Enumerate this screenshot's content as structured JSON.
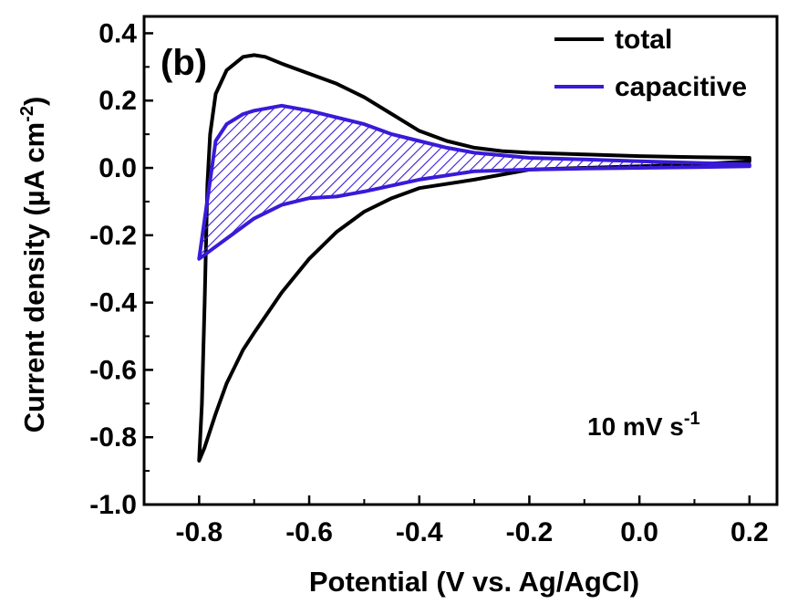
{
  "chart_data": {
    "type": "line",
    "panel_label": "(b)",
    "xlabel": "Potential (V vs. Ag/AgCl)",
    "ylabel": {
      "base": "Current density (µA cm",
      "sup": "-2",
      "close": ")"
    },
    "xlim": [
      -0.9,
      0.25
    ],
    "ylim": [
      -1.0,
      0.45
    ],
    "xticks": [
      -0.8,
      -0.6,
      -0.4,
      -0.2,
      0.0,
      0.2
    ],
    "xtick_labels": [
      "-0.8",
      "-0.6",
      "-0.4",
      "-0.2",
      "0.0",
      "0.2"
    ],
    "yticks": [
      -1.0,
      -0.8,
      -0.6,
      -0.4,
      -0.2,
      0.0,
      0.2,
      0.4
    ],
    "ytick_labels": [
      "-1.0",
      "-0.8",
      "-0.6",
      "-0.4",
      "-0.2",
      "0.0",
      "0.2",
      "0.4"
    ],
    "grid": false,
    "legend_position": "top-right",
    "annotation": {
      "base": "10 mV s",
      "sup": "-1"
    },
    "series": [
      {
        "name": "total",
        "color": "#000000",
        "points": [
          [
            -0.8,
            -0.87
          ],
          [
            -0.795,
            -0.7
          ],
          [
            -0.79,
            -0.4
          ],
          [
            -0.785,
            -0.05
          ],
          [
            -0.78,
            0.1
          ],
          [
            -0.77,
            0.22
          ],
          [
            -0.75,
            0.29
          ],
          [
            -0.72,
            0.33
          ],
          [
            -0.7,
            0.335
          ],
          [
            -0.68,
            0.33
          ],
          [
            -0.65,
            0.31
          ],
          [
            -0.6,
            0.28
          ],
          [
            -0.55,
            0.25
          ],
          [
            -0.5,
            0.21
          ],
          [
            -0.45,
            0.16
          ],
          [
            -0.4,
            0.11
          ],
          [
            -0.35,
            0.08
          ],
          [
            -0.3,
            0.06
          ],
          [
            -0.25,
            0.05
          ],
          [
            -0.2,
            0.045
          ],
          [
            -0.1,
            0.04
          ],
          [
            0.0,
            0.035
          ],
          [
            0.1,
            0.032
          ],
          [
            0.2,
            0.03
          ],
          [
            0.2,
            0.02
          ],
          [
            0.1,
            0.01
          ],
          [
            0.0,
            0.005
          ],
          [
            -0.1,
            0.0
          ],
          [
            -0.2,
            -0.005
          ],
          [
            -0.25,
            -0.02
          ],
          [
            -0.3,
            -0.035
          ],
          [
            -0.4,
            -0.06
          ],
          [
            -0.45,
            -0.09
          ],
          [
            -0.5,
            -0.13
          ],
          [
            -0.55,
            -0.19
          ],
          [
            -0.6,
            -0.27
          ],
          [
            -0.65,
            -0.37
          ],
          [
            -0.7,
            -0.49
          ],
          [
            -0.72,
            -0.54
          ],
          [
            -0.75,
            -0.64
          ],
          [
            -0.77,
            -0.73
          ],
          [
            -0.79,
            -0.83
          ],
          [
            -0.8,
            -0.87
          ]
        ]
      },
      {
        "name": "capacitive",
        "color": "#3a1ad8",
        "fill": "hatched",
        "points": [
          [
            -0.8,
            -0.27
          ],
          [
            -0.77,
            0.08
          ],
          [
            -0.75,
            0.13
          ],
          [
            -0.72,
            0.16
          ],
          [
            -0.7,
            0.17
          ],
          [
            -0.65,
            0.185
          ],
          [
            -0.6,
            0.17
          ],
          [
            -0.55,
            0.15
          ],
          [
            -0.5,
            0.13
          ],
          [
            -0.45,
            0.1
          ],
          [
            -0.4,
            0.08
          ],
          [
            -0.35,
            0.06
          ],
          [
            -0.3,
            0.045
          ],
          [
            -0.2,
            0.03
          ],
          [
            -0.1,
            0.025
          ],
          [
            0.0,
            0.02
          ],
          [
            0.1,
            0.015
          ],
          [
            0.2,
            0.01
          ],
          [
            0.2,
            0.005
          ],
          [
            0.1,
            0.002
          ],
          [
            0.0,
            0.0
          ],
          [
            -0.1,
            -0.002
          ],
          [
            -0.2,
            -0.005
          ],
          [
            -0.3,
            -0.01
          ],
          [
            -0.4,
            -0.035
          ],
          [
            -0.5,
            -0.07
          ],
          [
            -0.55,
            -0.085
          ],
          [
            -0.6,
            -0.09
          ],
          [
            -0.65,
            -0.11
          ],
          [
            -0.7,
            -0.15
          ],
          [
            -0.75,
            -0.21
          ],
          [
            -0.8,
            -0.27
          ]
        ]
      }
    ]
  }
}
